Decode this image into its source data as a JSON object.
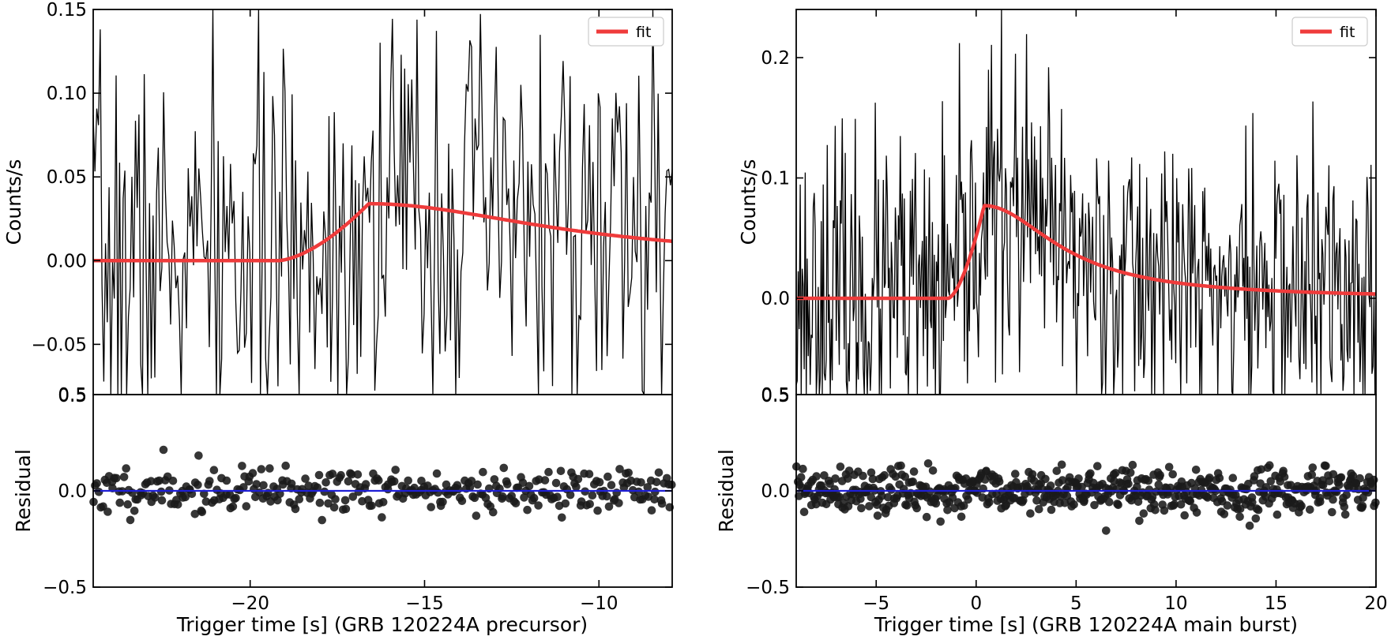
{
  "chart_data": [
    {
      "type": "line",
      "panel": "left-top",
      "ylabel": "Counts/s",
      "xlim": [
        -24.5,
        -7.9
      ],
      "ylim": [
        -0.08,
        0.15
      ],
      "yticks": [
        0.15,
        0.1,
        0.05,
        0.0,
        -0.05
      ],
      "ytick_labels": [
        "0.15",
        "0.10",
        "0.05",
        "0.00",
        "−0.05"
      ],
      "bottom_tick_label": "0.5",
      "legend": {
        "position": "top-right",
        "label": "fit"
      },
      "colors": {
        "data": "#000000",
        "fit": "#ef3b3b"
      },
      "series": [
        {
          "kind": "noisy-light-curve",
          "x_range": [
            -24.5,
            -7.9
          ],
          "n_points": 330,
          "noise_sigma": 0.06,
          "seed": 7
        },
        {
          "name": "fit",
          "kind": "fred-pulse",
          "t_start": -19.2,
          "peak_time": -16.6,
          "peak": 0.034
        }
      ]
    },
    {
      "type": "scatter",
      "panel": "left-bottom",
      "xlabel": "Trigger time [s] (GRB 120224A precursor)",
      "ylabel": "Residual",
      "xlim": [
        -24.5,
        -7.9
      ],
      "ylim": [
        -0.5,
        0.5
      ],
      "xticks": [
        -20,
        -15,
        -10
      ],
      "xtick_labels": [
        "−20",
        "−15",
        "−10"
      ],
      "yticks": [
        0.5,
        0.0,
        -0.5
      ],
      "ytick_labels": [
        "0.5",
        "0.0",
        "−0.5"
      ],
      "colors": {
        "points": "#1a1a1a",
        "zero_line": "#1f1fd6"
      },
      "series": [
        {
          "kind": "residual-points",
          "n_points": 330,
          "sigma": 0.06,
          "seed": 11,
          "zero_line": 0.0
        }
      ]
    },
    {
      "type": "line",
      "panel": "right-top",
      "ylabel": "Counts/s",
      "xlim": [
        -9,
        20
      ],
      "ylim": [
        -0.08,
        0.24
      ],
      "yticks": [
        0.2,
        0.1,
        0.0
      ],
      "ytick_labels": [
        "0.2",
        "0.1",
        "0.0"
      ],
      "bottom_tick_label": "0.5",
      "legend": {
        "position": "top-right",
        "label": "fit"
      },
      "colors": {
        "data": "#000000",
        "fit": "#ef3b3b"
      },
      "series": [
        {
          "kind": "noisy-light-curve",
          "x_range": [
            -9,
            20
          ],
          "n_points": 580,
          "noise_sigma": 0.065,
          "seed": 23
        },
        {
          "name": "fit",
          "kind": "fred-pulse",
          "t_start": -1.4,
          "peak_time": 0.4,
          "peak": 0.077
        }
      ]
    },
    {
      "type": "scatter",
      "panel": "right-bottom",
      "xlabel": "Trigger time [s] (GRB 120224A main burst)",
      "ylabel": "Residual",
      "xlim": [
        -9,
        20
      ],
      "ylim": [
        -0.5,
        0.5
      ],
      "xticks": [
        -5,
        0,
        5,
        10,
        15,
        20
      ],
      "xtick_labels": [
        "−5",
        "0",
        "5",
        "10",
        "15",
        "20"
      ],
      "yticks": [
        0.5,
        0.0,
        -0.5
      ],
      "ytick_labels": [
        "0.5",
        "0.0",
        "−0.5"
      ],
      "colors": {
        "points": "#1a1a1a",
        "zero_line": "#1f1fd6"
      },
      "series": [
        {
          "kind": "residual-points",
          "n_points": 580,
          "sigma": 0.06,
          "seed": 31,
          "zero_line": 0.0
        }
      ]
    }
  ]
}
